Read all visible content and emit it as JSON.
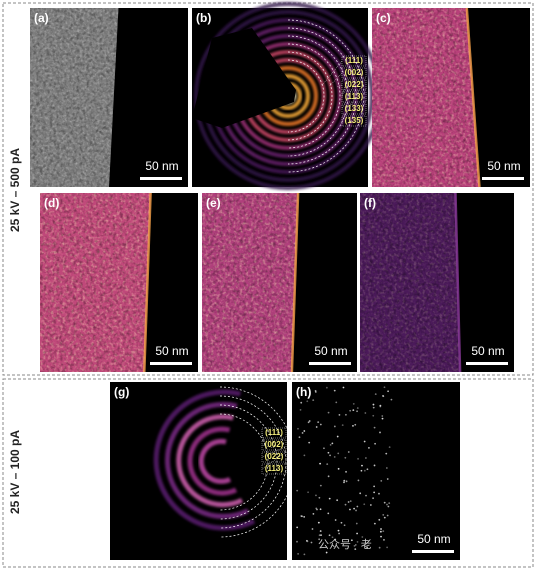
{
  "side_labels": [
    "25 kV – 500 pA",
    "25 kV – 100 pA"
  ],
  "panels": [
    {
      "label": "(a)",
      "scale_bar": "50 nm"
    },
    {
      "label": "(b)",
      "rings": [
        "(111)",
        "(002)",
        "(022)",
        "(113)",
        "(133)",
        "(135)"
      ]
    },
    {
      "label": "(c)",
      "scale_bar": "50 nm"
    },
    {
      "label": "(d)",
      "scale_bar": "50 nm"
    },
    {
      "label": "(e)",
      "scale_bar": "50 nm"
    },
    {
      "label": "(f)",
      "scale_bar": "50 nm"
    },
    {
      "label": "(g)",
      "rings": [
        "(111)",
        "(002)",
        "(022)",
        "(113)"
      ]
    },
    {
      "label": "(h)",
      "scale_bar": "50 nm"
    }
  ],
  "watermark": "公众号 · 老"
}
